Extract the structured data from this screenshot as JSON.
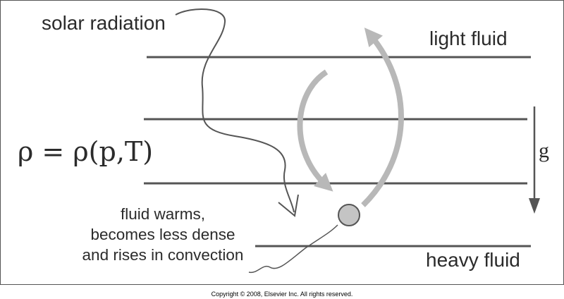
{
  "labels": {
    "solar_radiation": "solar radiation",
    "light_fluid": "light fluid",
    "heavy_fluid": "heavy fluid",
    "equation": "ρ = ρ(p,T)",
    "gravity": "g"
  },
  "note_lines": [
    "fluid warms,",
    "becomes less dense",
    "and rises in convection"
  ],
  "copyright": "Copyright © 2008, Elsevier Inc. All rights reserved.",
  "colors": {
    "line": "#555555",
    "arrow_gray": "#b8b8b8",
    "parcel_fill": "#c4c4c4",
    "text": "#2b2b2b"
  },
  "icons": {
    "parcel": "circle",
    "gravity_arrow": "down-arrow",
    "radiation": "wavy-arrow"
  }
}
